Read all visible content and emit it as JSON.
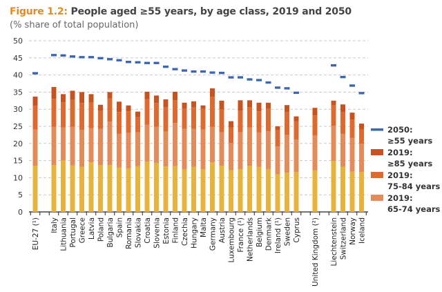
{
  "title_prefix": "Figure 1.2:",
  "title": "People aged ≥55 years, by age class, 2019 and 2050",
  "subtitle": "(% share of total population)",
  "chart_data": {
    "type": "bar",
    "stacked": true,
    "ylim": [
      0,
      50
    ],
    "yticks": [
      0,
      5,
      10,
      15,
      20,
      25,
      30,
      35,
      40,
      45,
      50
    ],
    "grid": true,
    "legend_position": "right",
    "categories": [
      "EU-27 (¹)",
      "Italy",
      "Lithuania",
      "Portugal",
      "Greece",
      "Latvia",
      "Poland",
      "Bulgaria",
      "Spain",
      "Romania",
      "Slovakia",
      "Croatia",
      "Slovenia",
      "Estonia",
      "Finland",
      "Czechia",
      "Hungary",
      "Malta",
      "Germany",
      "Austria",
      "Luxembourg",
      "France (¹)",
      "Netherlands",
      "Belgium",
      "Denmark",
      "Ireland (¹)",
      "Sweden",
      "Cyprus",
      "United Kingdom (²)",
      "Liechtenstein",
      "Switzerland",
      "Norway",
      "Iceland"
    ],
    "series": [
      {
        "color": "#E8B33A",
        "values": [
          13.5,
          13.7,
          15.0,
          13.6,
          13.2,
          14.5,
          13.7,
          13.7,
          13.0,
          12.8,
          13.4,
          14.7,
          14.3,
          13.3,
          13.4,
          12.5,
          13.2,
          12.5,
          14.5,
          13.5,
          12.2,
          12.5,
          13.5,
          13.2,
          12.5,
          11.0,
          11.5,
          11.7,
          12.2,
          14.9,
          13.2,
          11.8,
          11.7
        ]
      },
      {
        "name_year": "2019:",
        "name": "65-74 years",
        "color": "#E48B58",
        "values": [
          10.6,
          11.2,
          9.7,
          11.3,
          10.8,
          10.0,
          10.6,
          12.7,
          9.8,
          10.3,
          9.9,
          10.8,
          10.6,
          10.2,
          12.6,
          11.8,
          11.1,
          11.6,
          10.4,
          9.8,
          7.9,
          10.8,
          11.2,
          10.0,
          11.1,
          8.1,
          11.0,
          9.4,
          10.1,
          10.3,
          9.6,
          9.8,
          8.2
        ]
      },
      {
        "name_year": "2019:",
        "name": "75-84 years",
        "color": "#E06A2E",
        "values": [
          6.9,
          8.1,
          7.3,
          7.8,
          7.8,
          7.4,
          5.2,
          6.7,
          6.4,
          6.3,
          4.4,
          7.4,
          6.9,
          7.0,
          6.6,
          5.8,
          6.2,
          6.0,
          8.7,
          6.6,
          4.6,
          6.2,
          5.8,
          6.2,
          6.5,
          4.8,
          6.6,
          5.4,
          5.9,
          5.9,
          6.3,
          5.4,
          4.2
        ]
      },
      {
        "name_year": "2019:",
        "name": "≥85 years",
        "color": "#C9531F",
        "values": [
          2.7,
          3.5,
          2.4,
          2.7,
          3.2,
          2.5,
          1.8,
          1.9,
          3.0,
          1.7,
          1.6,
          2.2,
          2.2,
          2.4,
          2.5,
          1.8,
          1.8,
          1.0,
          2.5,
          2.6,
          1.8,
          3.1,
          2.1,
          2.5,
          1.8,
          1.1,
          2.1,
          1.4,
          2.2,
          1.4,
          2.3,
          2.0,
          1.7
        ]
      }
    ],
    "line_series": {
      "name_year": "2050:",
      "name": "≥55 years",
      "color": "#3C66B0",
      "style": "dash-markers",
      "values": [
        40.5,
        45.8,
        45.7,
        45.4,
        45.2,
        45.2,
        44.9,
        44.6,
        44.3,
        43.8,
        43.7,
        43.5,
        43.5,
        42.4,
        41.7,
        41.3,
        41.0,
        41.0,
        40.7,
        40.6,
        39.3,
        39.3,
        38.7,
        38.5,
        37.8,
        36.3,
        36.1,
        34.8,
        null,
        42.8,
        39.4,
        36.9,
        34.7
      ]
    }
  }
}
